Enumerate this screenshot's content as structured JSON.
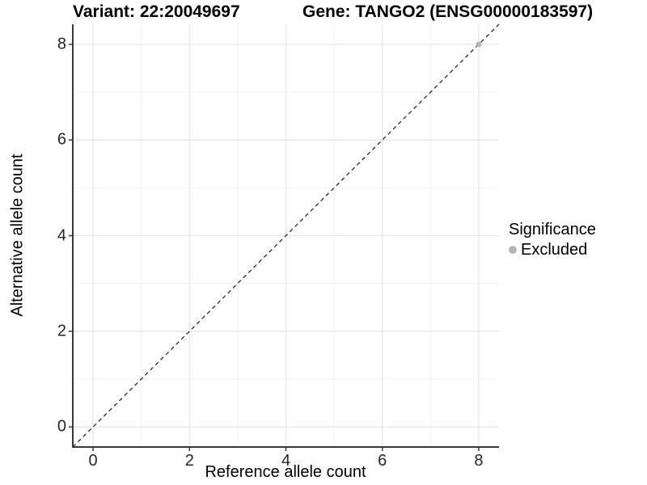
{
  "header": {
    "left_title": "Variant: 22:20049697",
    "right_title": "Gene: TANGO2 (ENSG00000183597)"
  },
  "chart_data": {
    "type": "scatter",
    "title": "Variant: 22:20049697  /  Gene: TANGO2 (ENSG00000183597)",
    "xlabel": "Reference allele count",
    "ylabel": "Alternative allele count",
    "xlim": [
      -0.42,
      8.42
    ],
    "ylim": [
      -0.42,
      8.42
    ],
    "xticks": [
      0,
      2,
      4,
      6,
      8
    ],
    "yticks": [
      0,
      2,
      4,
      6,
      8
    ],
    "minor_xticks": [
      1,
      3,
      5,
      7
    ],
    "minor_yticks": [
      1,
      3,
      5,
      7
    ],
    "grid": "major and minor, light grey on white",
    "series": [
      {
        "name": "Excluded",
        "points": [
          {
            "x": 8,
            "y": 8
          }
        ]
      }
    ],
    "reference_line": {
      "type": "identity y=x",
      "style": "dashed",
      "from": [
        -0.42,
        -0.42
      ],
      "to": [
        8.42,
        8.42
      ]
    },
    "legend": {
      "title": "Significance",
      "position": "right",
      "items": [
        {
          "label": "Excluded",
          "color": "#b4b4b4"
        }
      ]
    }
  },
  "colors": {
    "background": "#ffffff",
    "grid_major": "#e7e7e7",
    "grid_minor": "#f3f3f3",
    "axis_line": "#383838",
    "tick_mark": "#383838",
    "tick_label": "#262626",
    "dashed_line": "#1a1a1a",
    "point_excluded": "#b4b4b4"
  }
}
